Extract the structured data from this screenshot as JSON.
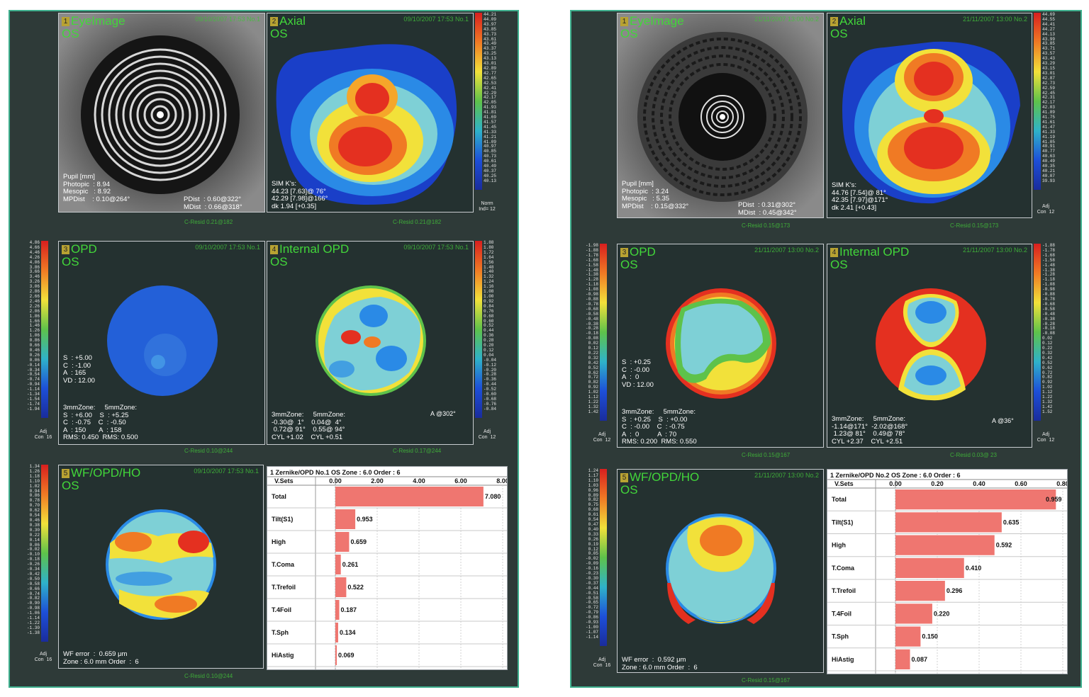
{
  "reports": [
    {
      "eye_image": {
        "num": "1",
        "title": "EyeImage",
        "eye": "OS",
        "date": "09/10/2007 17:53 No.1",
        "info": "Pupil [mm]\nPhotopic  : 8.94\nMesopic   : 8.92\nMPDist    : 0.10@264°",
        "info2": "PDist  : 0.60@322°\nMDist  : 0.66@318°"
      },
      "axial": {
        "num": "2",
        "title": "Axial",
        "eye": "OS",
        "date": "09/10/2007 17:53 No.1",
        "info": "SIM K's:\n44.23 [7.63]@ 76°\n42.29 [7.98]@166°\ndk 1.94 [+0.35]",
        "scale": [
          "44.21",
          "44.09",
          "43.97",
          "43.85",
          "43.73",
          "43.61",
          "43.49",
          "43.37",
          "43.25",
          "43.13",
          "43.01",
          "42.89",
          "42.77",
          "42.65",
          "42.53",
          "42.41",
          "42.29",
          "42.17",
          "42.05",
          "41.93",
          "41.81",
          "41.69",
          "41.57",
          "41.45",
          "41.33",
          "41.21",
          "41.09",
          "40.97",
          "40.85",
          "40.73",
          "40.61",
          "40.49",
          "40.37",
          "40.25",
          "40.13"
        ],
        "scale_cap": "Norm\nInd= 12"
      },
      "footer1": "C-Resid  0.21@182",
      "footer2": "C-Resid  0.21@182",
      "opd": {
        "num": "3",
        "title": "OPD",
        "eye": "OS",
        "date": "09/10/2007 17:53 No.1",
        "info": "S  : +5.00\nC  : -1.00\nA  : 165\nVD : 12.00",
        "zones": "3mmZone:     5mmZone:\nS  : +6.00    S  : +5.25\nC  : -0.75    C  : -0.50\nA  : 150       A  : 158\nRMS: 0.450  RMS: 0.500",
        "scale": [
          "4.86",
          "4.66",
          "4.46",
          "4.26",
          "4.06",
          "3.86",
          "3.66",
          "3.46",
          "3.26",
          "3.06",
          "2.86",
          "2.66",
          "2.46",
          "2.26",
          "2.06",
          "1.86",
          "1.66",
          "1.46",
          "1.26",
          "1.06",
          "0.86",
          "0.66",
          "0.46",
          "0.26",
          "0.06",
          "-0.14",
          "-0.34",
          "-0.54",
          "-0.74",
          "-0.94",
          "-1.14",
          "-1.34",
          "-1.54",
          "-1.74",
          "-1.94"
        ],
        "scale_cap": "Adj\nCon  16"
      },
      "internal": {
        "num": "4",
        "title": "Internal OPD",
        "eye": "OS",
        "date": "09/10/2007 17:53 No.1",
        "zones": "3mmZone:     5mmZone:\n-0.30@  1°    0.04@  4°\n 0.72@ 91°    0.55@ 94°\nCYL +1.02    CYL +0.51",
        "axis": "A @302°",
        "scale": [
          "1.88",
          "1.80",
          "1.72",
          "1.64",
          "1.56",
          "1.48",
          "1.40",
          "1.32",
          "1.24",
          "1.16",
          "1.08",
          "1.00",
          "0.92",
          "0.84",
          "0.76",
          "0.68",
          "0.60",
          "0.52",
          "0.44",
          "0.36",
          "0.28",
          "0.20",
          "0.12",
          "0.04",
          "-0.04",
          "-0.12",
          "-0.20",
          "-0.28",
          "-0.36",
          "-0.44",
          "-0.52",
          "-0.60",
          "-0.68",
          "-0.76",
          "-0.84"
        ],
        "scale_cap": "Adj\nCon  12"
      },
      "footer3": "C-Resid  0.10@244",
      "footer4": "C-Resid  0.17@244",
      "wf": {
        "num": "5",
        "title": "WF/OPD/HO",
        "eye": "OS",
        "date": "09/10/2007 17:53 No.1",
        "info": "WF error  :  0.659 μm\nZone : 6.0 mm Order  :  6",
        "scale": [
          "1.34",
          "1.26",
          "1.18",
          "1.10",
          "1.02",
          "0.94",
          "0.86",
          "0.78",
          "0.70",
          "0.62",
          "0.54",
          "0.46",
          "0.38",
          "0.30",
          "0.22",
          "0.14",
          "0.06",
          "-0.02",
          "-0.10",
          "-0.18",
          "-0.26",
          "-0.34",
          "-0.42",
          "-0.50",
          "-0.58",
          "-0.66",
          "-0.74",
          "-0.82",
          "-0.90",
          "-0.98",
          "-1.06",
          "-1.14",
          "-1.22",
          "-1.30",
          "-1.38"
        ],
        "scale_cap": "Adj\nCon  16"
      },
      "footer5": "C-Resid  0.10@244",
      "chart_data": {
        "type": "bar",
        "title": "1 Zernike/OPD No.1 OS Zone : 6.0 Order : 6",
        "xlabel": "V.Sets",
        "categories": [
          "Total",
          "Tilt(S1)",
          "High",
          "T.Coma",
          "T.Trefoil",
          "T.4Foil",
          "T.Sph",
          "HiAstig"
        ],
        "values": [
          7.08,
          0.953,
          0.659,
          0.261,
          0.522,
          0.187,
          0.134,
          0.069
        ],
        "labels": [
          "7.080",
          "0.953",
          "0.659",
          "0.261",
          "0.522",
          "0.187",
          "0.134",
          "0.069"
        ],
        "ticks": [
          "0.00",
          "2.00",
          "4.00",
          "6.00",
          "8.00"
        ],
        "xlim": [
          0,
          8
        ]
      }
    },
    {
      "eye_image": {
        "num": "1",
        "title": "EyeImage",
        "eye": "OS",
        "date": "21/11/2007 13:00 No.2",
        "info": "Pupil [mm]\nPhotopic  : 3.24\nMesopic   : 5.35\nMPDist    : 0.15@332°",
        "info2": "PDist  : 0.31@302°\nMDist  : 0.45@342°"
      },
      "axial": {
        "num": "2",
        "title": "Axial",
        "eye": "OS",
        "date": "21/11/2007 13:00 No.2",
        "info": "SIM K's:\n44.76 [7.54]@ 81°\n42.35 [7.97]@171°\ndk 2.41 [+0.43]",
        "scale": [
          "44.69",
          "44.55",
          "44.41",
          "44.27",
          "44.13",
          "43.99",
          "43.85",
          "43.71",
          "43.57",
          "43.43",
          "43.29",
          "43.15",
          "43.01",
          "42.87",
          "42.73",
          "42.59",
          "42.45",
          "42.31",
          "42.17",
          "42.03",
          "41.89",
          "41.75",
          "41.61",
          "41.47",
          "41.33",
          "41.19",
          "41.05",
          "40.91",
          "40.77",
          "40.63",
          "40.49",
          "40.35",
          "40.21",
          "40.07",
          "39.93"
        ],
        "scale_cap": "Adj\nCon  12"
      },
      "footer1": "C-Resid  0.15@173",
      "footer2": "C-Resid  0.15@173",
      "opd": {
        "num": "3",
        "title": "OPD",
        "eye": "OS",
        "date": "21/11/2007 13:00 No.2",
        "info": "S  : +0.25\nC  : -0.00\nA  :  0\nVD : 12.00",
        "zones": "3mmZone:     5mmZone:\nS  : +0.25    S  : +0.00\nC  : -0.00    C  : -0.75\nA  :  0          A  : 70\nRMS: 0.200  RMS: 0.550",
        "scale": [
          "-1.98",
          "-1.88",
          "-1.78",
          "-1.68",
          "-1.58",
          "-1.48",
          "-1.38",
          "-1.28",
          "-1.18",
          "-1.08",
          "-0.98",
          "-0.88",
          "-0.78",
          "-0.68",
          "-0.58",
          "-0.48",
          "-0.38",
          "-0.28",
          "-0.18",
          "-0.08",
          "0.02",
          "0.12",
          "0.22",
          "0.32",
          "0.42",
          "0.52",
          "0.62",
          "0.72",
          "0.82",
          "0.92",
          "1.02",
          "1.12",
          "1.22",
          "1.32",
          "1.42"
        ],
        "scale_cap": "Adj\nCon  12"
      },
      "internal": {
        "num": "4",
        "title": "Internal OPD",
        "eye": "OS",
        "date": "21/11/2007 13:00 No.2",
        "zones": "3mmZone:     5mmZone:\n-1.14@171°  -2.02@168°\n 1.23@ 81°    0.49@ 78°\nCYL +2.37    CYL +2.51",
        "axis": "A @36°",
        "scale": [
          "-1.88",
          "-1.78",
          "-1.68",
          "-1.58",
          "-1.48",
          "-1.38",
          "-1.28",
          "-1.18",
          "-1.08",
          "-0.98",
          "-0.88",
          "-0.78",
          "-0.68",
          "-0.58",
          "-0.48",
          "-0.38",
          "-0.28",
          "-0.18",
          "-0.08",
          "0.02",
          "0.12",
          "0.22",
          "0.32",
          "0.42",
          "0.52",
          "0.62",
          "0.72",
          "0.82",
          "0.92",
          "1.02",
          "1.12",
          "1.22",
          "1.32",
          "1.42",
          "1.52"
        ],
        "scale_cap": "Adj\nCon  12"
      },
      "footer3": "C-Resid  0.15@167",
      "footer4": "C-Resid  0.03@ 23",
      "wf": {
        "num": "5",
        "title": "WF/OPD/HO",
        "eye": "OS",
        "date": "21/11/2007 13:00 No.2",
        "info": "WF error  :  0.592 μm\nZone : 6.0 mm Order  :  6",
        "scale": [
          "1.24",
          "1.17",
          "1.10",
          "1.03",
          "0.96",
          "0.89",
          "0.82",
          "0.75",
          "0.68",
          "0.61",
          "0.54",
          "0.47",
          "0.40",
          "0.33",
          "0.26",
          "0.19",
          "0.12",
          "0.05",
          "-0.02",
          "-0.09",
          "-0.16",
          "-0.23",
          "-0.30",
          "-0.37",
          "-0.44",
          "-0.51",
          "-0.58",
          "-0.65",
          "-0.72",
          "-0.79",
          "-0.86",
          "-0.93",
          "-1.00",
          "-1.07",
          "-1.14"
        ],
        "scale_cap": "Adj\nCon  16"
      },
      "footer5": "C-Resid  0.15@167",
      "chart_data": {
        "type": "bar",
        "title": "1 Zernike/OPD No.2 OS Zone : 6.0 Order : 6",
        "xlabel": "V.Sets",
        "categories": [
          "Total",
          "Tilt(S1)",
          "High",
          "T.Coma",
          "T.Trefoil",
          "T.4Foil",
          "T.Sph",
          "HiAstig"
        ],
        "values": [
          0.959,
          0.635,
          0.592,
          0.41,
          0.296,
          0.22,
          0.15,
          0.087
        ],
        "labels": [
          "0.959",
          "0.635",
          "0.592",
          "0.410",
          "0.296",
          "0.220",
          "0.150",
          "0.087"
        ],
        "ticks": [
          "0.00",
          "0.20",
          "0.40",
          "0.60",
          "0.80"
        ],
        "xlim": [
          0,
          1
        ]
      }
    }
  ]
}
